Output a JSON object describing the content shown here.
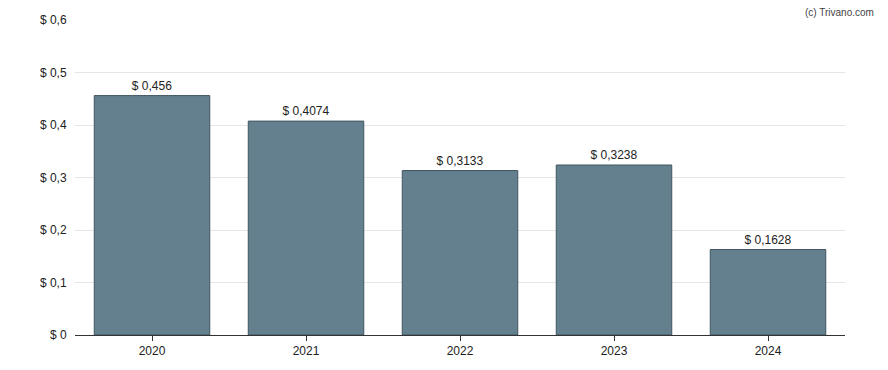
{
  "chart_data": {
    "type": "bar",
    "categories": [
      "2020",
      "2021",
      "2022",
      "2023",
      "2024"
    ],
    "values": [
      0.456,
      0.4074,
      0.3133,
      0.3238,
      0.1628
    ],
    "value_labels": [
      "$ 0,456",
      "$ 0,4074",
      "$ 0,3133",
      "$ 0,3238",
      "$ 0,1628"
    ],
    "data_labels": true,
    "color": "#64808f",
    "ylim": [
      0,
      0.6
    ],
    "yticks": [
      {
        "value": 0,
        "label": "$ 0"
      },
      {
        "value": 0.1,
        "label": "$ 0,1"
      },
      {
        "value": 0.2,
        "label": "$ 0,2"
      },
      {
        "value": 0.3,
        "label": "$ 0,3"
      },
      {
        "value": 0.4,
        "label": "$ 0,4"
      },
      {
        "value": 0.5,
        "label": "$ 0,5"
      },
      {
        "value": 0.6,
        "label": "$ 0,6"
      }
    ],
    "grid": true,
    "annotations": [
      {
        "text": "(c) Trivano.com"
      }
    ]
  }
}
